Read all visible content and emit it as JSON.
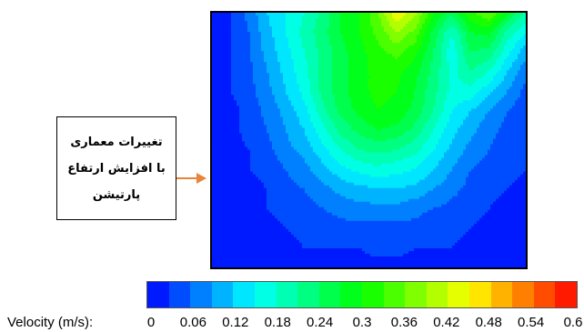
{
  "chart_data": {
    "type": "heatmap",
    "colorbar_label": "Velocity (m/s):",
    "colorbar_ticks": [
      "0",
      "0.06",
      "0.12",
      "0.18",
      "0.24",
      "0.3",
      "0.36",
      "0.42",
      "0.48",
      "0.54",
      "0.6"
    ],
    "colorbar_range": [
      0,
      0.6
    ],
    "colorbar_levels": 20,
    "colormap": [
      "#0000ff",
      "#00ffff",
      "#00ff00",
      "#ffff00",
      "#ff0000"
    ],
    "velocity_field": [
      [
        0.0,
        0.03,
        0.07,
        0.12,
        0.15,
        0.18,
        0.22,
        0.27,
        0.3,
        0.36,
        0.45,
        0.4,
        0.3,
        0.25,
        0.32,
        0.36,
        0.28,
        0.2
      ],
      [
        0.0,
        0.03,
        0.06,
        0.11,
        0.15,
        0.19,
        0.23,
        0.27,
        0.3,
        0.34,
        0.39,
        0.35,
        0.26,
        0.18,
        0.27,
        0.28,
        0.2,
        0.15
      ],
      [
        0.0,
        0.03,
        0.06,
        0.1,
        0.14,
        0.18,
        0.22,
        0.26,
        0.29,
        0.32,
        0.34,
        0.31,
        0.24,
        0.16,
        0.24,
        0.23,
        0.16,
        0.1
      ],
      [
        0.0,
        0.03,
        0.05,
        0.09,
        0.13,
        0.17,
        0.22,
        0.26,
        0.29,
        0.31,
        0.31,
        0.28,
        0.23,
        0.17,
        0.21,
        0.18,
        0.12,
        0.07
      ],
      [
        0.0,
        0.03,
        0.05,
        0.08,
        0.12,
        0.16,
        0.22,
        0.26,
        0.29,
        0.31,
        0.3,
        0.27,
        0.22,
        0.17,
        0.17,
        0.13,
        0.09,
        0.05
      ],
      [
        0.0,
        0.02,
        0.04,
        0.07,
        0.1,
        0.14,
        0.2,
        0.25,
        0.28,
        0.3,
        0.29,
        0.26,
        0.21,
        0.15,
        0.12,
        0.09,
        0.06,
        0.04
      ],
      [
        0.0,
        0.02,
        0.04,
        0.06,
        0.09,
        0.12,
        0.17,
        0.22,
        0.25,
        0.27,
        0.26,
        0.23,
        0.18,
        0.13,
        0.1,
        0.07,
        0.05,
        0.03
      ],
      [
        0.0,
        0.02,
        0.03,
        0.05,
        0.08,
        0.1,
        0.14,
        0.18,
        0.21,
        0.22,
        0.21,
        0.19,
        0.15,
        0.11,
        0.08,
        0.06,
        0.04,
        0.03
      ],
      [
        0.0,
        0.02,
        0.03,
        0.04,
        0.06,
        0.08,
        0.11,
        0.14,
        0.16,
        0.17,
        0.16,
        0.15,
        0.12,
        0.09,
        0.06,
        0.05,
        0.04,
        0.03
      ],
      [
        0.0,
        0.01,
        0.02,
        0.03,
        0.05,
        0.06,
        0.08,
        0.1,
        0.11,
        0.12,
        0.12,
        0.11,
        0.09,
        0.07,
        0.05,
        0.04,
        0.03,
        0.02
      ],
      [
        0.0,
        0.01,
        0.02,
        0.03,
        0.04,
        0.05,
        0.06,
        0.07,
        0.08,
        0.08,
        0.08,
        0.07,
        0.06,
        0.05,
        0.04,
        0.03,
        0.02,
        0.02
      ],
      [
        0.0,
        0.01,
        0.01,
        0.02,
        0.03,
        0.04,
        0.04,
        0.05,
        0.05,
        0.05,
        0.05,
        0.05,
        0.04,
        0.04,
        0.03,
        0.02,
        0.02,
        0.01
      ],
      [
        0.0,
        0.0,
        0.01,
        0.01,
        0.02,
        0.03,
        0.03,
        0.03,
        0.03,
        0.04,
        0.04,
        0.03,
        0.03,
        0.03,
        0.02,
        0.02,
        0.01,
        0.01
      ],
      [
        0.0,
        0.0,
        0.01,
        0.01,
        0.01,
        0.02,
        0.02,
        0.02,
        0.02,
        0.02,
        0.02,
        0.02,
        0.02,
        0.02,
        0.01,
        0.01,
        0.01,
        0.0
      ]
    ]
  },
  "annotation": {
    "lines": [
      "تغییرات معماری",
      "با افزایش ارتفاع",
      "پارتیشن"
    ],
    "arrow_color": "#e8853a"
  }
}
